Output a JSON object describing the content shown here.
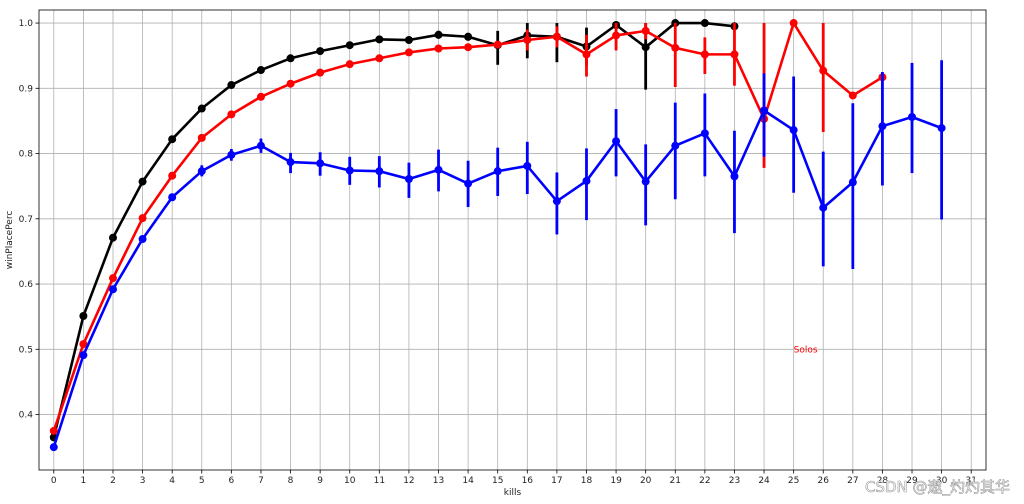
{
  "chart_data": {
    "type": "line",
    "xlabel": "kills",
    "ylabel": "winPlacePerc",
    "ylim": [
      0.315,
      1.02
    ],
    "xlim": [
      -0.5,
      31.5
    ],
    "x_ticks": [
      0,
      1,
      2,
      3,
      4,
      5,
      6,
      7,
      8,
      9,
      10,
      11,
      12,
      13,
      14,
      15,
      16,
      17,
      18,
      19,
      20,
      21,
      22,
      23,
      24,
      25,
      26,
      27,
      28,
      29,
      30,
      31
    ],
    "y_ticks": [
      0.4,
      0.5,
      0.6,
      0.7,
      0.8,
      0.9,
      1.0
    ],
    "y_tick_labels": [
      "0.4",
      "0.5",
      "0.6",
      "0.7",
      "0.8",
      "0.9",
      "1.0"
    ],
    "grid": true,
    "annotations": [
      {
        "text": "Solos",
        "x": 25,
        "y": 0.5,
        "color": "#ff0000"
      }
    ],
    "watermark": "CSDN @遨_灼灼其华",
    "series": [
      {
        "color": "#000000",
        "x": [
          0,
          1,
          2,
          3,
          4,
          5,
          6,
          7,
          8,
          9,
          10,
          11,
          12,
          13,
          14,
          15,
          16,
          17,
          18,
          19,
          20,
          21,
          22,
          23
        ],
        "values": [
          0.365,
          0.551,
          0.671,
          0.757,
          0.822,
          0.869,
          0.905,
          0.928,
          0.946,
          0.957,
          0.966,
          0.975,
          0.974,
          0.982,
          0.979,
          0.966,
          0.981,
          0.979,
          0.964,
          0.997,
          0.963,
          1.0,
          1.0,
          0.995
        ],
        "err_low": [
          null,
          null,
          null,
          null,
          null,
          null,
          null,
          null,
          null,
          null,
          null,
          null,
          0.969,
          0.976,
          0.973,
          0.936,
          0.946,
          0.94,
          0.935,
          0.992,
          0.898,
          1.0,
          1.0,
          0.99
        ],
        "err_high": [
          null,
          null,
          null,
          null,
          null,
          null,
          null,
          null,
          null,
          null,
          null,
          null,
          0.979,
          0.988,
          0.985,
          0.988,
          1.0,
          1.0,
          0.993,
          1.0,
          1.0,
          1.0,
          1.0,
          1.0
        ]
      },
      {
        "color": "#ff0000",
        "x": [
          0,
          1,
          2,
          3,
          4,
          5,
          6,
          7,
          8,
          9,
          10,
          11,
          12,
          13,
          14,
          15,
          16,
          17,
          18,
          19,
          20,
          21,
          22,
          23,
          24,
          25,
          26,
          27,
          28
        ],
        "values": [
          0.375,
          0.508,
          0.609,
          0.701,
          0.766,
          0.824,
          0.86,
          0.887,
          0.907,
          0.924,
          0.937,
          0.946,
          0.955,
          0.961,
          0.963,
          0.967,
          0.974,
          0.979,
          0.952,
          0.981,
          0.988,
          0.962,
          0.952,
          0.952,
          0.853,
          1.0,
          0.927,
          0.889,
          0.917
        ],
        "err_low": [
          null,
          null,
          null,
          null,
          null,
          null,
          null,
          null,
          null,
          null,
          null,
          null,
          null,
          null,
          null,
          null,
          0.958,
          0.963,
          0.918,
          0.958,
          0.975,
          0.902,
          0.922,
          0.904,
          0.778,
          1.0,
          0.833,
          0.889,
          0.917
        ],
        "err_high": [
          null,
          null,
          null,
          null,
          null,
          null,
          null,
          null,
          null,
          null,
          null,
          null,
          null,
          null,
          null,
          null,
          0.99,
          0.995,
          0.982,
          1.0,
          1.0,
          1.0,
          0.978,
          1.0,
          1.0,
          1.0,
          1.0,
          0.889,
          0.917
        ]
      },
      {
        "color": "#0000ff",
        "x": [
          0,
          1,
          2,
          3,
          4,
          5,
          6,
          7,
          8,
          9,
          10,
          11,
          12,
          13,
          14,
          15,
          16,
          17,
          18,
          19,
          20,
          21,
          22,
          23,
          24,
          25,
          26,
          27,
          28,
          29,
          30
        ],
        "values": [
          0.35,
          0.491,
          0.592,
          0.669,
          0.733,
          0.773,
          0.798,
          0.812,
          0.787,
          0.785,
          0.774,
          0.773,
          0.761,
          0.775,
          0.754,
          0.773,
          0.781,
          0.727,
          0.758,
          0.819,
          0.757,
          0.812,
          0.831,
          0.765,
          0.866,
          0.836,
          0.717,
          0.756,
          0.842,
          0.856,
          0.839
        ],
        "err_low": [
          null,
          null,
          null,
          null,
          null,
          0.765,
          0.789,
          0.801,
          0.77,
          0.766,
          0.752,
          0.748,
          0.732,
          0.742,
          0.718,
          0.735,
          0.738,
          0.676,
          0.698,
          0.765,
          0.69,
          0.73,
          0.765,
          0.678,
          0.795,
          0.74,
          0.627,
          0.623,
          0.751,
          0.77,
          0.699
        ],
        "err_high": [
          null,
          null,
          null,
          null,
          null,
          0.782,
          0.807,
          0.823,
          0.801,
          0.802,
          0.795,
          0.796,
          0.786,
          0.806,
          0.789,
          0.809,
          0.818,
          0.771,
          0.808,
          0.868,
          0.814,
          0.878,
          0.892,
          0.835,
          0.923,
          0.918,
          0.803,
          0.877,
          0.925,
          0.939,
          0.943
        ]
      }
    ]
  }
}
